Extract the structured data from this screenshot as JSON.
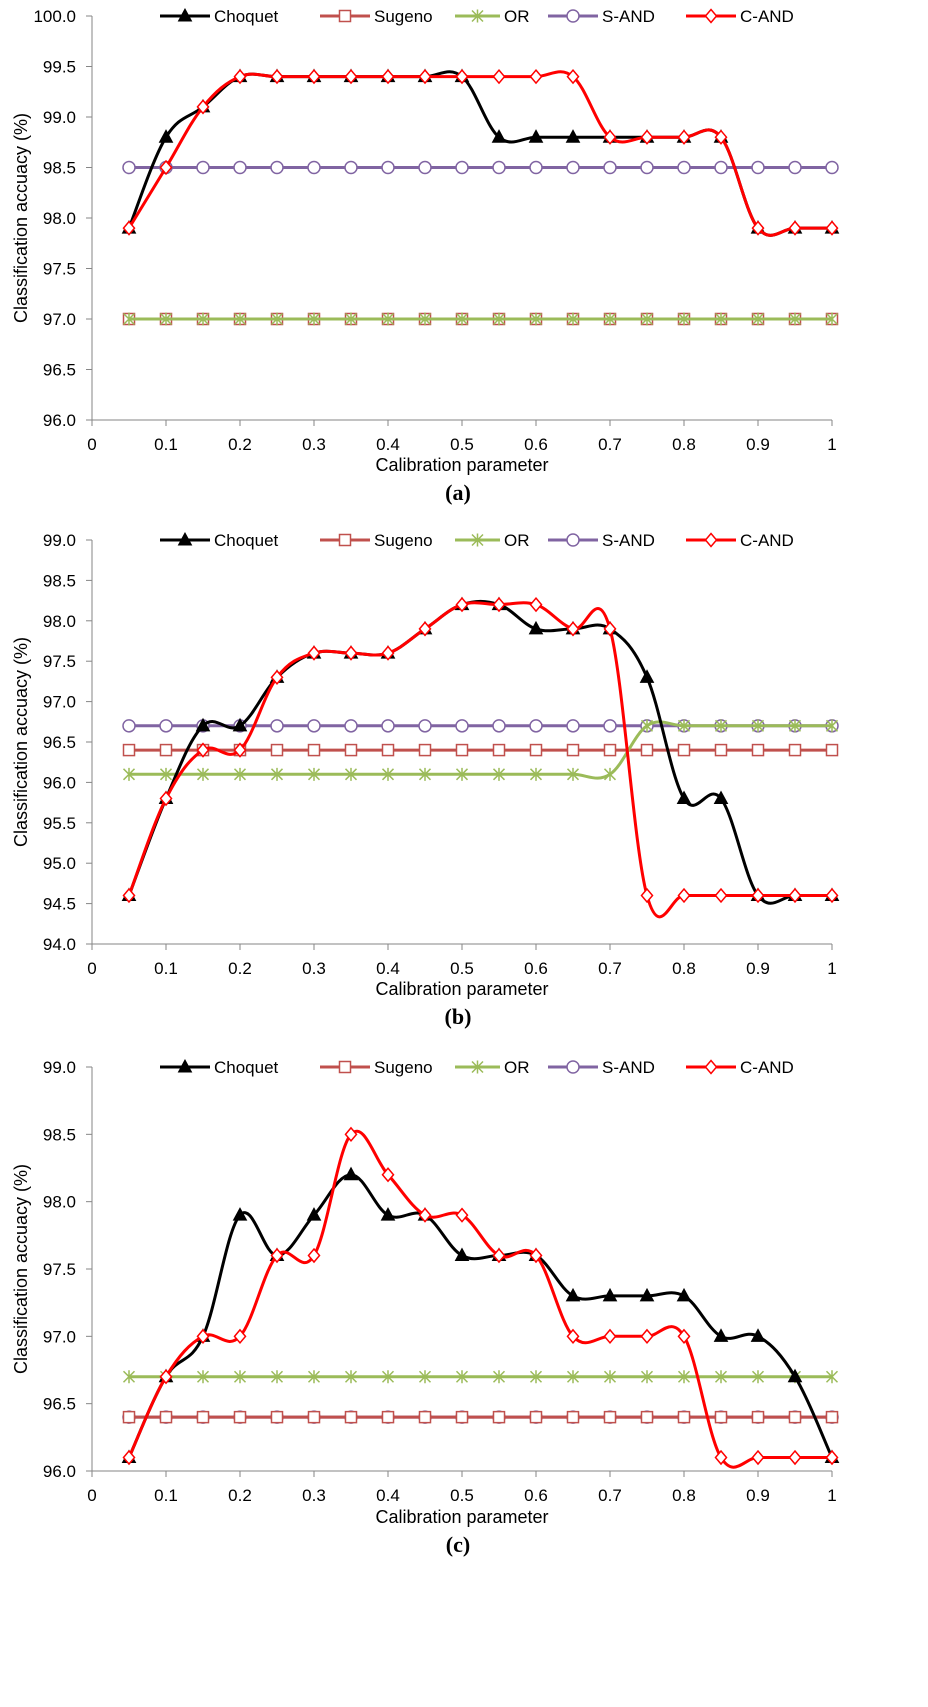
{
  "legend": [
    {
      "name": "Choquet",
      "color": "#000000",
      "marker": "triangle"
    },
    {
      "name": "Sugeno",
      "color": "#c0504d",
      "marker": "square"
    },
    {
      "name": "OR",
      "color": "#9bbb59",
      "marker": "asterisk"
    },
    {
      "name": "S-AND",
      "color": "#8064a2",
      "marker": "circle"
    },
    {
      "name": "C-AND",
      "color": "#ff0000",
      "marker": "diamond"
    }
  ],
  "chart_data": [
    {
      "type": "line",
      "caption": "(a)",
      "xlabel": "Calibration parameter",
      "ylabel": "Classification accuacy (%)",
      "xlim": [
        0,
        1
      ],
      "ylim": [
        96.0,
        100.0
      ],
      "x_ticks": [
        "0",
        "0.1",
        "0.2",
        "0.3",
        "0.4",
        "0.5",
        "0.6",
        "0.7",
        "0.8",
        "0.9",
        "1"
      ],
      "y_ticks": [
        "96.0",
        "96.5",
        "97.0",
        "97.5",
        "98.0",
        "98.5",
        "99.0",
        "99.5",
        "100.0"
      ],
      "x": [
        0.05,
        0.1,
        0.15,
        0.2,
        0.25,
        0.3,
        0.35,
        0.4,
        0.45,
        0.5,
        0.55,
        0.6,
        0.65,
        0.7,
        0.75,
        0.8,
        0.85,
        0.9,
        0.95,
        1.0
      ],
      "series": [
        {
          "name": "Choquet",
          "values": [
            97.9,
            98.8,
            99.1,
            99.4,
            99.4,
            99.4,
            99.4,
            99.4,
            99.4,
            99.4,
            98.8,
            98.8,
            98.8,
            98.8,
            98.8,
            98.8,
            98.8,
            97.9,
            97.9,
            97.9
          ]
        },
        {
          "name": "Sugeno",
          "values": [
            97.0,
            97.0,
            97.0,
            97.0,
            97.0,
            97.0,
            97.0,
            97.0,
            97.0,
            97.0,
            97.0,
            97.0,
            97.0,
            97.0,
            97.0,
            97.0,
            97.0,
            97.0,
            97.0,
            97.0
          ]
        },
        {
          "name": "OR",
          "values": [
            97.0,
            97.0,
            97.0,
            97.0,
            97.0,
            97.0,
            97.0,
            97.0,
            97.0,
            97.0,
            97.0,
            97.0,
            97.0,
            97.0,
            97.0,
            97.0,
            97.0,
            97.0,
            97.0,
            97.0
          ]
        },
        {
          "name": "S-AND",
          "values": [
            98.5,
            98.5,
            98.5,
            98.5,
            98.5,
            98.5,
            98.5,
            98.5,
            98.5,
            98.5,
            98.5,
            98.5,
            98.5,
            98.5,
            98.5,
            98.5,
            98.5,
            98.5,
            98.5,
            98.5
          ]
        },
        {
          "name": "C-AND",
          "values": [
            97.9,
            98.5,
            99.1,
            99.4,
            99.4,
            99.4,
            99.4,
            99.4,
            99.4,
            99.4,
            99.4,
            99.4,
            99.4,
            98.8,
            98.8,
            98.8,
            98.8,
            97.9,
            97.9,
            97.9
          ]
        }
      ]
    },
    {
      "type": "line",
      "caption": "(b)",
      "xlabel": "Calibration parameter",
      "ylabel": "Classification accuacy (%)",
      "xlim": [
        0,
        1
      ],
      "ylim": [
        94.0,
        99.0
      ],
      "x_ticks": [
        "0",
        "0.1",
        "0.2",
        "0.3",
        "0.4",
        "0.5",
        "0.6",
        "0.7",
        "0.8",
        "0.9",
        "1"
      ],
      "y_ticks": [
        "94.0",
        "94.5",
        "95.0",
        "95.5",
        "96.0",
        "96.5",
        "97.0",
        "97.5",
        "98.0",
        "98.5",
        "99.0"
      ],
      "x": [
        0.05,
        0.1,
        0.15,
        0.2,
        0.25,
        0.3,
        0.35,
        0.4,
        0.45,
        0.5,
        0.55,
        0.6,
        0.65,
        0.7,
        0.75,
        0.8,
        0.85,
        0.9,
        0.95,
        1.0
      ],
      "series": [
        {
          "name": "Choquet",
          "values": [
            94.6,
            95.8,
            96.7,
            96.7,
            97.3,
            97.6,
            97.6,
            97.6,
            97.9,
            98.2,
            98.2,
            97.9,
            97.9,
            97.9,
            97.3,
            95.8,
            95.8,
            94.6,
            94.6,
            94.6
          ]
        },
        {
          "name": "Sugeno",
          "values": [
            96.4,
            96.4,
            96.4,
            96.4,
            96.4,
            96.4,
            96.4,
            96.4,
            96.4,
            96.4,
            96.4,
            96.4,
            96.4,
            96.4,
            96.4,
            96.4,
            96.4,
            96.4,
            96.4,
            96.4
          ]
        },
        {
          "name": "OR",
          "values": [
            96.1,
            96.1,
            96.1,
            96.1,
            96.1,
            96.1,
            96.1,
            96.1,
            96.1,
            96.1,
            96.1,
            96.1,
            96.1,
            96.1,
            96.7,
            96.7,
            96.7,
            96.7,
            96.7,
            96.7
          ]
        },
        {
          "name": "S-AND",
          "values": [
            96.7,
            96.7,
            96.7,
            96.7,
            96.7,
            96.7,
            96.7,
            96.7,
            96.7,
            96.7,
            96.7,
            96.7,
            96.7,
            96.7,
            96.7,
            96.7,
            96.7,
            96.7,
            96.7,
            96.7
          ]
        },
        {
          "name": "C-AND",
          "values": [
            94.6,
            95.8,
            96.4,
            96.4,
            97.3,
            97.6,
            97.6,
            97.6,
            97.9,
            98.2,
            98.2,
            98.2,
            97.9,
            97.9,
            94.6,
            94.6,
            94.6,
            94.6,
            94.6,
            94.6
          ]
        }
      ]
    },
    {
      "type": "line",
      "caption": "(c)",
      "xlabel": "Calibration parameter",
      "ylabel": "Classification accuacy (%)",
      "xlim": [
        0,
        1
      ],
      "ylim": [
        96.0,
        99.0
      ],
      "x_ticks": [
        "0",
        "0.1",
        "0.2",
        "0.3",
        "0.4",
        "0.5",
        "0.6",
        "0.7",
        "0.8",
        "0.9",
        "1"
      ],
      "y_ticks": [
        "96.0",
        "96.5",
        "97.0",
        "97.5",
        "98.0",
        "98.5",
        "99.0"
      ],
      "x": [
        0.05,
        0.1,
        0.15,
        0.2,
        0.25,
        0.3,
        0.35,
        0.4,
        0.45,
        0.5,
        0.55,
        0.6,
        0.65,
        0.7,
        0.75,
        0.8,
        0.85,
        0.9,
        0.95,
        1.0
      ],
      "series": [
        {
          "name": "Choquet",
          "values": [
            96.1,
            96.7,
            97.0,
            97.9,
            97.6,
            97.9,
            98.2,
            97.9,
            97.9,
            97.6,
            97.6,
            97.6,
            97.3,
            97.3,
            97.3,
            97.3,
            97.0,
            97.0,
            96.7,
            96.1
          ]
        },
        {
          "name": "Sugeno",
          "values": [
            96.4,
            96.4,
            96.4,
            96.4,
            96.4,
            96.4,
            96.4,
            96.4,
            96.4,
            96.4,
            96.4,
            96.4,
            96.4,
            96.4,
            96.4,
            96.4,
            96.4,
            96.4,
            96.4,
            96.4
          ]
        },
        {
          "name": "OR",
          "values": [
            96.7,
            96.7,
            96.7,
            96.7,
            96.7,
            96.7,
            96.7,
            96.7,
            96.7,
            96.7,
            96.7,
            96.7,
            96.7,
            96.7,
            96.7,
            96.7,
            96.7,
            96.7,
            96.7,
            96.7
          ]
        },
        {
          "name": "S-AND",
          "values": [
            96.4,
            96.4,
            96.4,
            96.4,
            96.4,
            96.4,
            96.4,
            96.4,
            96.4,
            96.4,
            96.4,
            96.4,
            96.4,
            96.4,
            96.4,
            96.4,
            96.4,
            96.4,
            96.4,
            96.4
          ]
        },
        {
          "name": "C-AND",
          "values": [
            96.1,
            96.7,
            97.0,
            97.0,
            97.6,
            97.6,
            98.5,
            98.2,
            97.9,
            97.9,
            97.6,
            97.6,
            97.0,
            97.0,
            97.0,
            97.0,
            96.1,
            96.1,
            96.1,
            96.1
          ]
        }
      ]
    }
  ]
}
